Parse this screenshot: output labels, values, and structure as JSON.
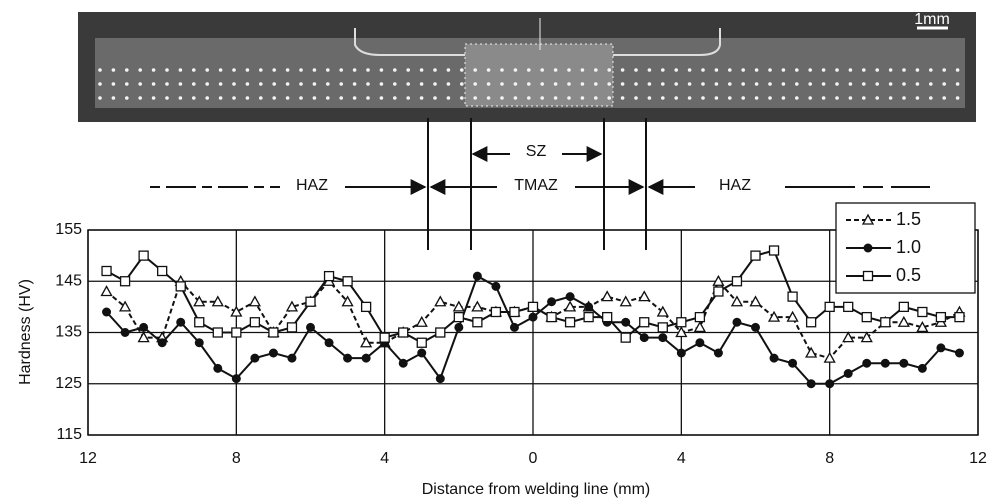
{
  "chart_data": {
    "type": "line",
    "xlabel": "Distance from welding line (mm)",
    "ylabel": "Hardness (HV)",
    "annotations": [
      "SZ",
      "TMAZ",
      "HAZ",
      "HAZ",
      "1mm"
    ],
    "x": [
      -11.5,
      -11,
      -10.5,
      -10,
      -9.5,
      -9,
      -8.5,
      -8,
      -7.5,
      -7,
      -6.5,
      -6,
      -5.5,
      -5,
      -4.5,
      -4,
      -3.5,
      -3,
      -2.5,
      -2,
      -1.5,
      -1,
      -0.5,
      0,
      0.5,
      1,
      1.5,
      2,
      2.5,
      3,
      3.5,
      4,
      4.5,
      5,
      5.5,
      6,
      6.5,
      7,
      7.5,
      8,
      8.5,
      9,
      9.5,
      10,
      10.5,
      11,
      11.5
    ],
    "xlim": [
      -12,
      12
    ],
    "xticks": [
      {
        "value": -12,
        "label": "12"
      },
      {
        "value": -8,
        "label": "8"
      },
      {
        "value": -4,
        "label": "4"
      },
      0,
      4,
      8,
      12
    ],
    "ylim": [
      115,
      155
    ],
    "yticks": [
      115,
      125,
      135,
      145,
      155
    ],
    "grid": true,
    "legend": "upper right",
    "series": [
      {
        "name": "1.5",
        "color": "#111111",
        "marker": "triangle",
        "dash": true,
        "values": [
          143,
          140,
          134,
          134,
          145,
          141,
          141,
          139,
          141,
          135,
          140,
          141,
          145,
          141,
          133,
          133,
          135,
          137,
          141,
          140,
          140,
          139,
          139,
          140,
          138,
          140,
          140,
          142,
          141,
          142,
          139,
          135,
          136,
          145,
          141,
          141,
          138,
          138,
          131,
          130,
          134,
          134,
          137,
          137,
          136,
          137,
          139
        ]
      },
      {
        "name": "1.0",
        "color": "#111111",
        "marker": "circle",
        "dash": false,
        "values": [
          139,
          135,
          136,
          133,
          137,
          133,
          128,
          126,
          130,
          131,
          130,
          136,
          133,
          130,
          130,
          133,
          129,
          131,
          126,
          136,
          146,
          144,
          136,
          138,
          141,
          142,
          140,
          137,
          137,
          134,
          134,
          131,
          133,
          131,
          137,
          136,
          130,
          129,
          125,
          125,
          127,
          129,
          129,
          129,
          128,
          132,
          131
        ]
      },
      {
        "name": "0.5",
        "color": "#111111",
        "marker": "square",
        "dash": false,
        "values": [
          147,
          145,
          150,
          147,
          144,
          137,
          135,
          135,
          137,
          135,
          136,
          141,
          146,
          145,
          140,
          134,
          135,
          133,
          135,
          138,
          137,
          139,
          139,
          140,
          138,
          137,
          138,
          138,
          134,
          137,
          136,
          137,
          138,
          143,
          145,
          150,
          151,
          142,
          137,
          140,
          140,
          138,
          137,
          140,
          139,
          138,
          138
        ]
      }
    ]
  }
}
